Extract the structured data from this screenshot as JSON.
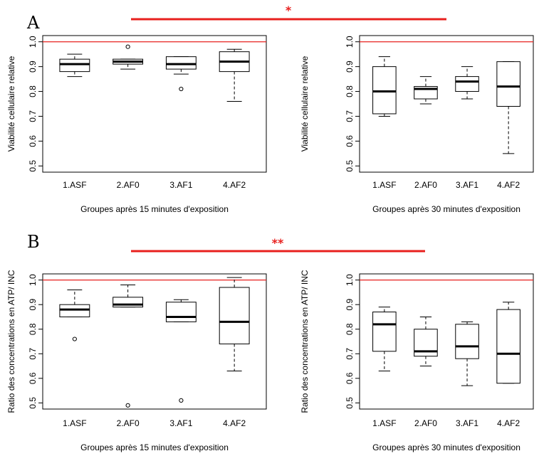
{
  "panels": [
    {
      "letter": "A",
      "significance": "*"
    },
    {
      "letter": "B",
      "significance": "**"
    }
  ],
  "colors": {
    "reference_line": "#e8201e",
    "significance_bar": "#e8201e",
    "box": "#000000"
  },
  "chart_data": [
    {
      "type": "boxplot",
      "panel": "A",
      "xlabel": "Groupes après 15 minutes d'exposition",
      "ylabel": "Viabilité cellulaire relative",
      "categories": [
        "1.ASF",
        "2.AF0",
        "3.AF1",
        "4.AF2"
      ],
      "yticks": [
        "0.5",
        "0.6",
        "0.7",
        "0.8",
        "0.9",
        "1.0"
      ],
      "ylim": [
        0.475,
        1.025
      ],
      "reference_line": 1.0,
      "boxes": [
        {
          "whisker_low": 0.86,
          "q1": 0.88,
          "median": 0.91,
          "q3": 0.93,
          "whisker_high": 0.95,
          "outliers": []
        },
        {
          "whisker_low": 0.89,
          "q1": 0.91,
          "median": 0.92,
          "q3": 0.93,
          "whisker_high": 0.93,
          "outliers": [
            0.98
          ]
        },
        {
          "whisker_low": 0.87,
          "q1": 0.89,
          "median": 0.91,
          "q3": 0.94,
          "whisker_high": 0.94,
          "outliers": [
            0.81
          ]
        },
        {
          "whisker_low": 0.76,
          "q1": 0.88,
          "median": 0.92,
          "q3": 0.96,
          "whisker_high": 0.97,
          "outliers": []
        }
      ]
    },
    {
      "type": "boxplot",
      "panel": "A",
      "xlabel": "Groupes après 30 minutes d'exposition",
      "ylabel": "Viabilité cellulaire relative",
      "categories": [
        "1.ASF",
        "2.AF0",
        "3.AF1",
        "4.AF2"
      ],
      "yticks": [
        "0.5",
        "0.6",
        "0.7",
        "0.8",
        "0.9",
        "1.0"
      ],
      "ylim": [
        0.475,
        1.025
      ],
      "reference_line": 1.0,
      "boxes": [
        {
          "whisker_low": 0.7,
          "q1": 0.71,
          "median": 0.8,
          "q3": 0.9,
          "whisker_high": 0.94,
          "outliers": []
        },
        {
          "whisker_low": 0.75,
          "q1": 0.77,
          "median": 0.81,
          "q3": 0.82,
          "whisker_high": 0.86,
          "outliers": []
        },
        {
          "whisker_low": 0.77,
          "q1": 0.8,
          "median": 0.84,
          "q3": 0.86,
          "whisker_high": 0.9,
          "outliers": []
        },
        {
          "whisker_low": 0.55,
          "q1": 0.74,
          "median": 0.82,
          "q3": 0.92,
          "whisker_high": 0.92,
          "outliers": []
        }
      ]
    },
    {
      "type": "boxplot",
      "panel": "B",
      "xlabel": "Groupes après 15 minutes d'exposition",
      "ylabel": "Ratio des concentrations en ATP/ INC",
      "categories": [
        "1.ASF",
        "2.AF0",
        "3.AF1",
        "4.AF2"
      ],
      "yticks": [
        "0.5",
        "0.6",
        "0.7",
        "0.8",
        "0.9",
        "1.0"
      ],
      "ylim": [
        0.475,
        1.025
      ],
      "reference_line": 1.0,
      "boxes": [
        {
          "whisker_low": 0.85,
          "q1": 0.85,
          "median": 0.88,
          "q3": 0.9,
          "whisker_high": 0.96,
          "outliers": [
            0.76
          ]
        },
        {
          "whisker_low": 0.89,
          "q1": 0.89,
          "median": 0.9,
          "q3": 0.93,
          "whisker_high": 0.98,
          "outliers": [
            0.49
          ]
        },
        {
          "whisker_low": 0.83,
          "q1": 0.83,
          "median": 0.85,
          "q3": 0.91,
          "whisker_high": 0.92,
          "outliers": [
            0.51
          ]
        },
        {
          "whisker_low": 0.63,
          "q1": 0.74,
          "median": 0.83,
          "q3": 0.97,
          "whisker_high": 1.01,
          "outliers": []
        }
      ]
    },
    {
      "type": "boxplot",
      "panel": "B",
      "xlabel": "Groupes après 30 minutes d'exposition",
      "ylabel": "Ratio des concentrations en ATP/ INC",
      "categories": [
        "1.ASF",
        "2.AF0",
        "3.AF1",
        "4.AF2"
      ],
      "yticks": [
        "0.5",
        "0.6",
        "0.7",
        "0.8",
        "0.9",
        "1.0"
      ],
      "ylim": [
        0.475,
        1.025
      ],
      "reference_line": 1.0,
      "boxes": [
        {
          "whisker_low": 0.63,
          "q1": 0.71,
          "median": 0.82,
          "q3": 0.87,
          "whisker_high": 0.89,
          "outliers": []
        },
        {
          "whisker_low": 0.65,
          "q1": 0.69,
          "median": 0.71,
          "q3": 0.8,
          "whisker_high": 0.85,
          "outliers": []
        },
        {
          "whisker_low": 0.57,
          "q1": 0.68,
          "median": 0.73,
          "q3": 0.82,
          "whisker_high": 0.83,
          "outliers": []
        },
        {
          "whisker_low": 0.58,
          "q1": 0.58,
          "median": 0.7,
          "q3": 0.88,
          "whisker_high": 0.91,
          "outliers": []
        }
      ]
    }
  ]
}
